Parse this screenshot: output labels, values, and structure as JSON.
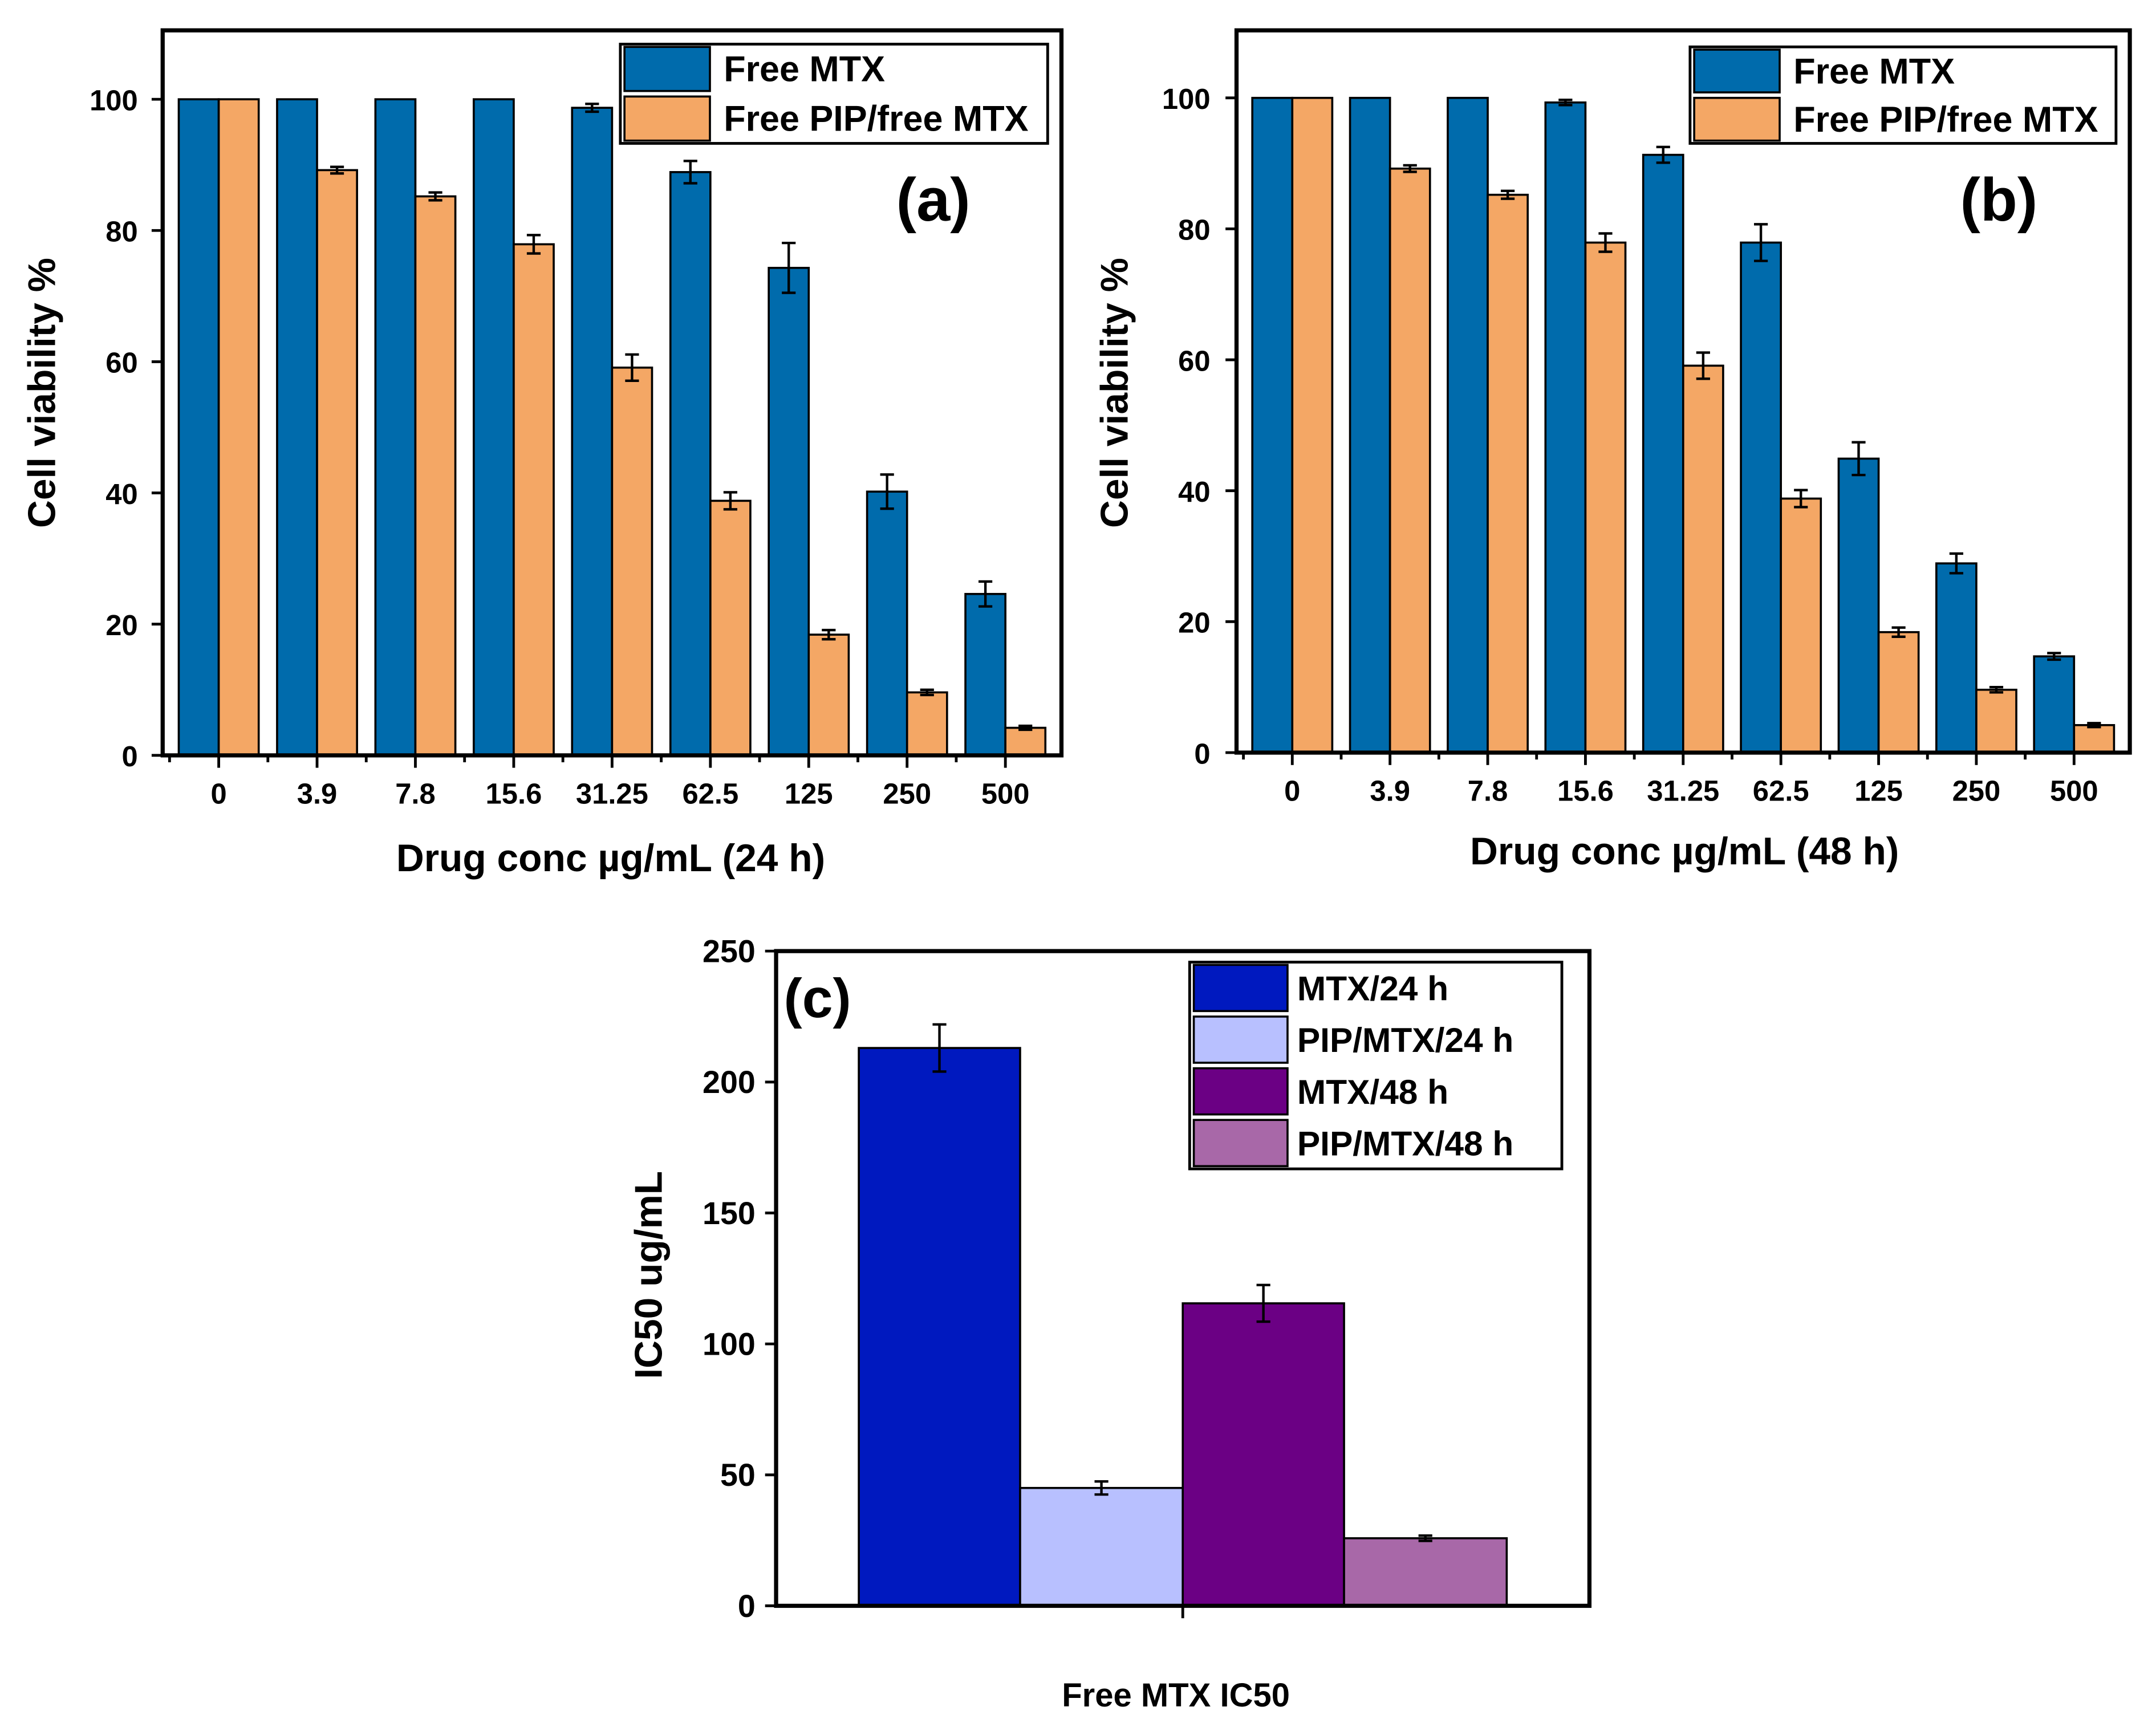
{
  "chart_data": [
    {
      "type": "bar",
      "panel_label": "(a)",
      "categories": [
        "0",
        "3.9",
        "7.8",
        "15.6",
        "31.25",
        "62.5",
        "125",
        "250",
        "500"
      ],
      "xlabel": "Drug conc µg/mL (24 h)",
      "ylabel": "Cell viability %",
      "ylim": [
        0,
        110
      ],
      "yticks": [
        "0",
        "20",
        "40",
        "60",
        "80",
        "100"
      ],
      "legend_position": "top-right",
      "series": [
        {
          "name": "Free MTX",
          "color": "#006BAC",
          "values": [
            100,
            100,
            100,
            100,
            98.7,
            88.9,
            74.3,
            40.2,
            24.6
          ],
          "errors": [
            0,
            0,
            0,
            0,
            0.6,
            1.7,
            3.8,
            2.6,
            1.9
          ]
        },
        {
          "name": "Free PIP/free MTX",
          "color": "#F4A765",
          "values": [
            100,
            89.2,
            85.2,
            77.9,
            59.1,
            38.8,
            18.4,
            9.6,
            4.2
          ],
          "errors": [
            0,
            0.5,
            0.6,
            1.4,
            2.0,
            1.3,
            0.7,
            0.4,
            0.3
          ]
        }
      ]
    },
    {
      "type": "bar",
      "panel_label": "(b)",
      "categories": [
        "0",
        "3.9",
        "7.8",
        "15.6",
        "31.25",
        "62.5",
        "125",
        "250",
        "500"
      ],
      "xlabel": "Drug conc µg/mL (48 h)",
      "ylabel": "Cell viability %",
      "ylim": [
        0,
        110
      ],
      "yticks": [
        "0",
        "20",
        "40",
        "60",
        "80",
        "100"
      ],
      "legend_position": "top-right",
      "series": [
        {
          "name": "Free MTX",
          "color": "#006BAC",
          "values": [
            100,
            100,
            100,
            99.3,
            91.3,
            77.9,
            44.9,
            28.9,
            14.7
          ],
          "errors": [
            0,
            0,
            0,
            0.4,
            1.2,
            2.8,
            2.5,
            1.5,
            0.5
          ]
        },
        {
          "name": "Free PIP/free MTX",
          "color": "#F4A765",
          "values": [
            100,
            89.2,
            85.2,
            77.9,
            59.1,
            38.8,
            18.4,
            9.6,
            4.2
          ],
          "errors": [
            0,
            0.5,
            0.6,
            1.4,
            2.0,
            1.3,
            0.7,
            0.4,
            0.3
          ]
        }
      ]
    },
    {
      "type": "bar",
      "panel_label": "(c)",
      "categories": [
        "Free MTX IC50"
      ],
      "xlabel": "Free MTX IC50",
      "ylabel": "IC50 ug/mL",
      "ylim": [
        0,
        250
      ],
      "yticks": [
        "0",
        "50",
        "100",
        "150",
        "200",
        "250"
      ],
      "legend_position": "top-right",
      "series": [
        {
          "name": "MTX/24 h",
          "color": "#0019BF",
          "values": [
            213
          ],
          "errors": [
            9
          ]
        },
        {
          "name": "PIP/MTX/24 h",
          "color": "#B8C0FF",
          "values": [
            45
          ],
          "errors": [
            2.5
          ]
        },
        {
          "name": "MTX/48 h",
          "color": "#6B0084",
          "values": [
            115.5
          ],
          "errors": [
            7
          ]
        },
        {
          "name": "PIP/MTX/48 h",
          "color": "#A868A8",
          "values": [
            25.8
          ],
          "errors": [
            1
          ]
        }
      ]
    }
  ]
}
